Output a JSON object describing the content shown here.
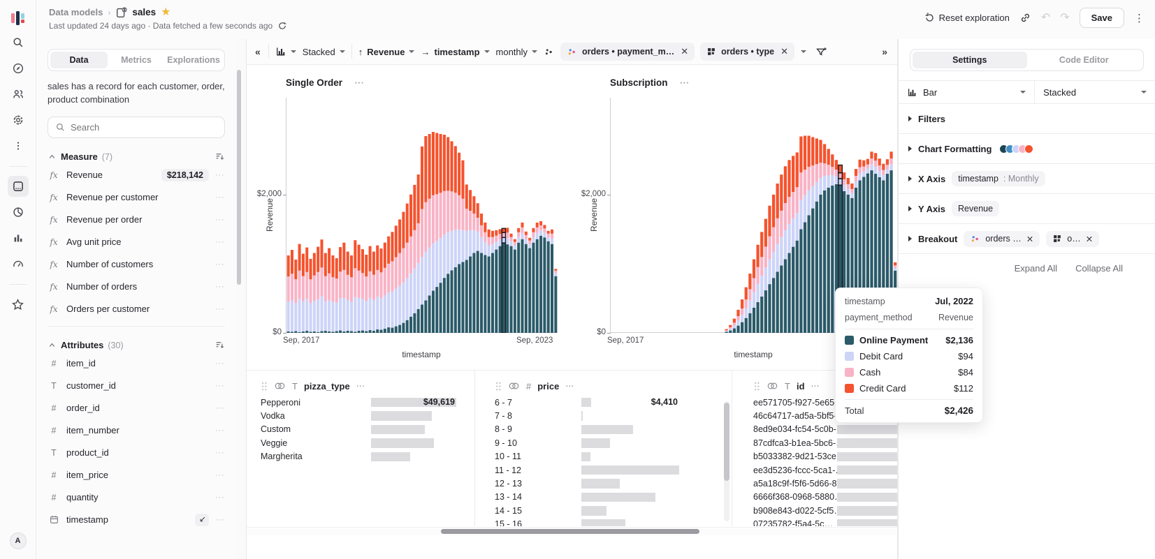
{
  "header": {
    "breadcrumb": {
      "root": "Data models",
      "separator": "›",
      "model": "sales"
    },
    "subtitle": "Last updated 24 days ago · Data fetched a few seconds ago",
    "actions": {
      "reset": "Reset exploration",
      "save": "Save"
    }
  },
  "rail": {
    "top": [
      {
        "name": "search"
      },
      {
        "name": "compass"
      },
      {
        "name": "users"
      },
      {
        "name": "gear"
      },
      {
        "name": "more"
      }
    ],
    "workspace": [
      {
        "name": "dataset",
        "active": true
      },
      {
        "name": "pie-chart"
      },
      {
        "name": "bar-chart"
      },
      {
        "name": "gauge"
      }
    ],
    "bottom": [
      {
        "name": "favorites"
      }
    ],
    "avatar_label": "A"
  },
  "left_panel": {
    "tabs": [
      {
        "label": "Data",
        "active": true
      },
      {
        "label": "Metrics"
      },
      {
        "label": "Explorations"
      }
    ],
    "description": "sales has a record for each customer, order, product combination",
    "search_placeholder": "Search",
    "measure": {
      "title": "Measure",
      "count": "(7)",
      "items": [
        {
          "name": "Revenue",
          "value": "$218,142"
        },
        {
          "name": "Revenue per customer"
        },
        {
          "name": "Revenue per order"
        },
        {
          "name": "Avg unit price"
        },
        {
          "name": "Number of customers"
        },
        {
          "name": "Number of orders"
        },
        {
          "name": "Orders per customer"
        }
      ]
    },
    "attributes": {
      "title": "Attributes",
      "count": "(30)",
      "items": [
        {
          "type": "number",
          "name": "item_id"
        },
        {
          "type": "text",
          "name": "customer_id"
        },
        {
          "type": "number",
          "name": "order_id"
        },
        {
          "type": "number",
          "name": "item_number"
        },
        {
          "type": "text",
          "name": "product_id"
        },
        {
          "type": "number",
          "name": "item_price"
        },
        {
          "type": "number",
          "name": "quantity"
        },
        {
          "type": "date",
          "name": "timestamp",
          "axis_badge": true
        }
      ]
    }
  },
  "toolbar": {
    "stack_label": "Stacked",
    "y_field": "Revenue",
    "x_field": "timestamp",
    "granularity": "monthly",
    "chips": [
      {
        "icon": "dot-cluster",
        "label": "orders • payment_m…"
      },
      {
        "icon": "grid4",
        "label": "orders • type"
      }
    ]
  },
  "chart_data": [
    {
      "type": "bar",
      "stacked": true,
      "title": "Single Order",
      "xlabel": "timestamp",
      "ylabel": "Revenue",
      "x_start_label": "Sep, 2017",
      "x_end_label": "Sep, 2023",
      "show_x_end": true,
      "ylim": [
        0,
        3400
      ],
      "yticks": [
        {
          "v": 0,
          "label": "$0"
        },
        {
          "v": 2000,
          "label": "$2,000"
        }
      ],
      "highlight_index": 58,
      "highlight_x": "Jul, 2022",
      "series": [
        {
          "name": "Online Payment",
          "color": "#2b5a69",
          "values": [
            20,
            15,
            25,
            10,
            20,
            30,
            15,
            20,
            10,
            25,
            30,
            20,
            15,
            25,
            35,
            20,
            30,
            25,
            15,
            30,
            35,
            25,
            40,
            30,
            50,
            45,
            60,
            80,
            75,
            95,
            115,
            145,
            185,
            235,
            285,
            345,
            410,
            470,
            540,
            610,
            665,
            725,
            795,
            855,
            905,
            950,
            995,
            1025,
            1055,
            1105,
            1155,
            1185,
            1155,
            1125,
            1105,
            1155,
            1205,
            1255,
            1300,
            1280,
            1255,
            1205,
            1305,
            1355,
            1285,
            1225,
            1305,
            1355,
            1405,
            1380,
            1325,
            1285,
            820
          ]
        },
        {
          "name": "Debit Card",
          "color": "#ccd4f8",
          "values": [
            430,
            455,
            405,
            485,
            435,
            465,
            415,
            445,
            475,
            505,
            425,
            455,
            435,
            415,
            465,
            485,
            445,
            425,
            505,
            475,
            455,
            435,
            465,
            445,
            475,
            455,
            485,
            505,
            525,
            545,
            565,
            585,
            605,
            625,
            645,
            665,
            685,
            705,
            695,
            685,
            665,
            645,
            625,
            600,
            570,
            540,
            500,
            460,
            420,
            380,
            330,
            280,
            230,
            190,
            160,
            130,
            110,
            95,
            80,
            90,
            70,
            60,
            80,
            90,
            70,
            60,
            80,
            90,
            80,
            70,
            60,
            80,
            45
          ]
        },
        {
          "name": "Cash",
          "color": "#f9b3c6",
          "values": [
            365,
            385,
            345,
            405,
            365,
            385,
            345,
            365,
            395,
            415,
            365,
            385,
            355,
            345,
            385,
            405,
            365,
            355,
            415,
            395,
            375,
            355,
            385,
            365,
            385,
            375,
            395,
            415,
            435,
            455,
            475,
            495,
            515,
            535,
            555,
            575,
            695,
            715,
            705,
            695,
            675,
            655,
            630,
            600,
            570,
            535,
            495,
            455,
            320,
            280,
            240,
            200,
            170,
            140,
            120,
            100,
            90,
            80,
            70,
            80,
            60,
            50,
            70,
            80,
            60,
            50,
            70,
            80,
            70,
            60,
            50,
            70,
            35
          ]
        },
        {
          "name": "Credit Card",
          "color": "#f4532e",
          "values": [
            305,
            345,
            285,
            385,
            325,
            355,
            295,
            325,
            365,
            405,
            335,
            365,
            315,
            295,
            355,
            395,
            335,
            315,
            405,
            375,
            345,
            315,
            365,
            335,
            355,
            345,
            365,
            395,
            425,
            455,
            485,
            525,
            565,
            605,
            655,
            705,
            905,
            955,
            935,
            915,
            885,
            850,
            815,
            775,
            725,
            675,
            615,
            555,
            350,
            300,
            250,
            210,
            170,
            140,
            110,
            90,
            80,
            70,
            60,
            70,
            50,
            40,
            60,
            70,
            50,
            40,
            60,
            70,
            60,
            50,
            40,
            60,
            25
          ]
        }
      ]
    },
    {
      "type": "bar",
      "stacked": true,
      "title": "Subscription",
      "xlabel": "timestamp",
      "ylabel": "Revenue",
      "x_start_label": "Sep, 2017",
      "x_end_label": "Sep, 2023",
      "show_x_end": false,
      "ylim": [
        0,
        3400
      ],
      "yticks": [
        {
          "v": 0,
          "label": "$0"
        },
        {
          "v": 2000,
          "label": "$2,000"
        }
      ],
      "highlight_index": 58,
      "highlight_x": "Jul, 2022",
      "series": [
        {
          "name": "Online Payment",
          "color": "#2b5a69",
          "values": [
            0,
            0,
            0,
            0,
            0,
            0,
            0,
            0,
            0,
            0,
            0,
            0,
            0,
            0,
            0,
            0,
            0,
            0,
            0,
            0,
            0,
            0,
            0,
            0,
            0,
            0,
            0,
            0,
            0,
            15,
            35,
            65,
            105,
            155,
            215,
            285,
            365,
            445,
            525,
            615,
            705,
            795,
            885,
            975,
            1065,
            1155,
            1245,
            1335,
            1500,
            1600,
            1700,
            1800,
            1900,
            2000,
            2060,
            2100,
            2130,
            2150,
            2136,
            2050,
            2000,
            1950,
            2100,
            2205,
            2255,
            2305,
            2350,
            2300,
            2250,
            2205,
            2300,
            2350,
            900
          ]
        },
        {
          "name": "Debit Card",
          "color": "#ccd4f8",
          "values": [
            0,
            0,
            0,
            0,
            0,
            0,
            0,
            0,
            0,
            0,
            0,
            0,
            0,
            0,
            0,
            0,
            0,
            0,
            0,
            0,
            0,
            0,
            0,
            0,
            0,
            0,
            0,
            0,
            0,
            12,
            25,
            45,
            75,
            105,
            145,
            185,
            225,
            265,
            300,
            330,
            360,
            380,
            400,
            410,
            420,
            420,
            410,
            400,
            420,
            390,
            360,
            320,
            280,
            240,
            210,
            180,
            150,
            115,
            94,
            90,
            80,
            70,
            90,
            100,
            80,
            70,
            90,
            100,
            90,
            80,
            70,
            90,
            40
          ]
        },
        {
          "name": "Cash",
          "color": "#f9b3c6",
          "values": [
            0,
            0,
            0,
            0,
            0,
            0,
            0,
            0,
            0,
            0,
            0,
            0,
            0,
            0,
            0,
            0,
            0,
            0,
            0,
            0,
            0,
            0,
            0,
            0,
            0,
            0,
            0,
            0,
            0,
            10,
            22,
            38,
            62,
            92,
            122,
            162,
            202,
            242,
            272,
            302,
            332,
            352,
            372,
            382,
            392,
            392,
            382,
            372,
            400,
            370,
            340,
            300,
            260,
            220,
            180,
            150,
            120,
            95,
            84,
            80,
            70,
            60,
            80,
            90,
            70,
            60,
            80,
            90,
            80,
            70,
            60,
            80,
            35
          ]
        },
        {
          "name": "Credit Card",
          "color": "#f4532e",
          "values": [
            0,
            0,
            0,
            0,
            0,
            0,
            0,
            0,
            0,
            0,
            0,
            0,
            0,
            0,
            0,
            0,
            0,
            0,
            0,
            0,
            0,
            0,
            0,
            0,
            0,
            0,
            0,
            0,
            0,
            18,
            32,
            58,
            92,
            132,
            178,
            225,
            272,
            322,
            362,
            402,
            442,
            472,
            502,
            522,
            532,
            532,
            522,
            502,
            520,
            490,
            450,
            410,
            370,
            330,
            280,
            230,
            180,
            140,
            112,
            100,
            90,
            80,
            100,
            110,
            90,
            80,
            100,
            110,
            100,
            90,
            80,
            100,
            45
          ]
        }
      ]
    }
  ],
  "bottom_panels": [
    {
      "field": "pizza_type",
      "type": "text",
      "rows": [
        {
          "label": "Pepperoni",
          "value": "$49,619",
          "bar_pct": 100
        },
        {
          "label": "Vodka",
          "bar_pct": 71
        },
        {
          "label": "Custom",
          "bar_pct": 63
        },
        {
          "label": "Veggie",
          "bar_pct": 74
        },
        {
          "label": "Margherita",
          "bar_pct": 46
        }
      ]
    },
    {
      "field": "price",
      "type": "number",
      "rows": [
        {
          "label": "6 - 7",
          "value": "$4,410",
          "bar_pct": 10
        },
        {
          "label": "7 - 8",
          "bar_pct": 1.5
        },
        {
          "label": "8 - 9",
          "bar_pct": 53
        },
        {
          "label": "9 - 10",
          "bar_pct": 29
        },
        {
          "label": "10 - 11",
          "bar_pct": 9
        },
        {
          "label": "11 - 12",
          "bar_pct": 100
        },
        {
          "label": "12 - 13",
          "bar_pct": 39
        },
        {
          "label": "13 - 14",
          "bar_pct": 76
        },
        {
          "label": "14 - 15",
          "bar_pct": 26
        },
        {
          "label": "15 - 16",
          "bar_pct": 45
        }
      ]
    },
    {
      "field": "id",
      "type": "text",
      "rows": [
        {
          "label": "ee571705-f927-5e65-…",
          "bar_pct": 100
        },
        {
          "label": "46c64717-ad5a-5bf5-…",
          "bar_pct": 100
        },
        {
          "label": "8ed9e034-fc54-5c0b-…",
          "bar_pct": 100
        },
        {
          "label": "87cdfca3-b1ea-5bc6-…",
          "bar_pct": 100
        },
        {
          "label": "b5033382-9d21-53ce…",
          "bar_pct": 100
        },
        {
          "label": "ee3d5236-fccc-5ca1-…",
          "bar_pct": 100
        },
        {
          "label": "a5a18c9f-f5f6-5d66-8…",
          "bar_pct": 100
        },
        {
          "label": "6666f368-0968-5880…",
          "bar_pct": 100
        },
        {
          "label": "b908e843-d022-5cf5…",
          "bar_pct": 100
        },
        {
          "label": "07235782-f5a4-5c…",
          "bar_pct": 100
        }
      ]
    }
  ],
  "right_panel": {
    "tabs": [
      {
        "label": "Settings",
        "active": true
      },
      {
        "label": "Code Editor"
      }
    ],
    "chart_type_label": "Bar",
    "stack_type_label": "Stacked",
    "sections": [
      {
        "label": "Filters"
      },
      {
        "label": "Chart Formatting",
        "palette": [
          "#1d4556",
          "#3f8fc4",
          "#ccd4f8",
          "#f9b3c6",
          "#f4532e"
        ]
      },
      {
        "label": "X Axis",
        "chip_main": "timestamp",
        "chip_sub": " : Monthly"
      },
      {
        "label": "Y Axis",
        "chip_main": "Revenue"
      },
      {
        "label": "Breakout",
        "chips": [
          {
            "icon": "dot-cluster",
            "label": "orders …"
          },
          {
            "icon": "grid4",
            "label": "o…"
          }
        ]
      }
    ],
    "expand_all": "Expand All",
    "collapse_all": "Collapse All"
  },
  "tooltip": {
    "rows": [
      {
        "label": "timestamp",
        "value": "Jul, 2022",
        "bold": true
      },
      {
        "label": "payment_method",
        "value": "Revenue",
        "bold": false
      }
    ],
    "legend": [
      {
        "color": "#2b5a69",
        "label": "Online Payment",
        "value": "$2,136",
        "bold": true
      },
      {
        "color": "#ccd4f8",
        "label": "Debit Card",
        "value": "$94",
        "bold": false
      },
      {
        "color": "#f9b3c6",
        "label": "Cash",
        "value": "$84",
        "bold": false
      },
      {
        "color": "#f4532e",
        "label": "Credit Card",
        "value": "$112",
        "bold": false
      }
    ],
    "total_label": "Total",
    "total_value": "$2,426"
  }
}
